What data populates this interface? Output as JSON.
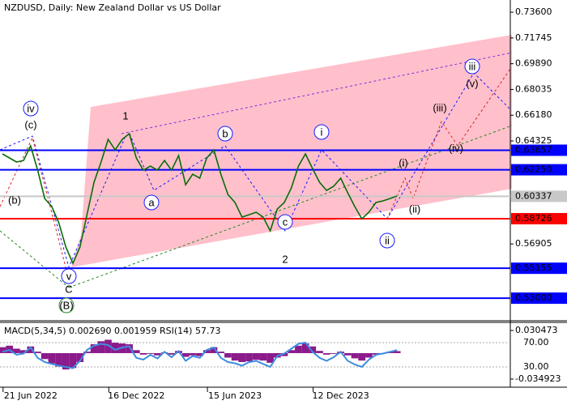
{
  "chart_data": [
    {
      "type": "line",
      "title": "NZDUSD, Daily:  New Zealand Dollar vs US Dollar",
      "values": [
        0.6339,
        0.631,
        0.6281,
        0.6292,
        0.6397,
        0.6222,
        0.6018,
        0.596,
        0.5843,
        0.5668,
        0.5551,
        0.5668,
        0.5901,
        0.6135,
        0.6281,
        0.6444,
        0.6368,
        0.6444,
        0.6485,
        0.631,
        0.6222,
        0.6251,
        0.6222,
        0.6292,
        0.6222,
        0.6327,
        0.6117,
        0.6193,
        0.6164,
        0.631,
        0.6368,
        0.6193,
        0.6047,
        0.5989,
        0.5884,
        0.5901,
        0.5919,
        0.5884,
        0.5785,
        0.5942,
        0.5989,
        0.6094,
        0.6251,
        0.6339,
        0.6234,
        0.6135,
        0.6076,
        0.6106,
        0.6164,
        0.6059,
        0.596,
        0.5872,
        0.5919,
        0.5989,
        0.6001,
        0.6018,
        0.6036
      ],
      "color": "#0a6b0a",
      "ylim": [
        0.5143,
        0.7448
      ],
      "yticks": [
        {
          "value": 0.736,
          "label": "0.73600"
        },
        0.71745,
        {
          "value": 0.6989,
          "label": "0.69890"
        },
        0.68035,
        {
          "value": 0.6618,
          "label": "0.66180"
        },
        0.64325,
        0.56905
      ],
      "levels": [
        {
          "value": 0.63657,
          "color": "#0000ff"
        },
        {
          "value": {
            "value": 0.6225,
            "label": "0.62250"
          },
          "color": "#0000ff"
        },
        {
          "value": 0.60337,
          "color": "#c8c8c8"
        },
        {
          "value": 0.58726,
          "color": "#ff0000"
        },
        {
          "value": 0.55155,
          "color": "#0000ff"
        },
        {
          "value": {
            "value": 0.53,
            "label": "0.53000"
          },
          "color": "#0000ff"
        }
      ],
      "annotations": [
        {
          "text": "iv",
          "color": "#1a1aff",
          "circled": true
        },
        {
          "text": "(c)",
          "color": "#dd2222",
          "circled": false
        },
        {
          "text": "(b)",
          "color": "#dd2222",
          "circled": false
        },
        {
          "text": "v",
          "color": "#1a1aff",
          "circled": true
        },
        {
          "text": "C",
          "color": "#dd2222",
          "circled": false
        },
        {
          "text": "(B)",
          "color": "#228822",
          "circled": true
        },
        {
          "text": "1",
          "color": "#dd2222",
          "circled": false
        },
        {
          "text": "a",
          "color": "#1a1aff",
          "circled": true
        },
        {
          "text": "b",
          "color": "#1a1aff",
          "circled": true
        },
        {
          "text": "c",
          "color": "#1a1aff",
          "circled": true
        },
        {
          "text": "2",
          "color": "#dd2222",
          "circled": false
        },
        {
          "text": "i",
          "color": "#1a1aff",
          "circled": true
        },
        {
          "text": "ii",
          "color": "#1a1aff",
          "circled": true
        },
        {
          "text": "(i)",
          "color": "#dd2222",
          "circled": false
        },
        {
          "text": "(ii)",
          "color": "#dd2222",
          "circled": false
        },
        {
          "text": "(iii)",
          "color": "#dd2222",
          "circled": false
        },
        {
          "text": "(iv)",
          "color": "#dd2222",
          "circled": false
        },
        {
          "text": "(v)",
          "color": "#dd2222",
          "circled": false
        },
        {
          "text": "iii",
          "color": "#1a1aff",
          "circled": true
        }
      ]
    },
    {
      "type": "bar",
      "title": "MACD(5,34,5) 0.002690 0.001959 RSI(14) 57.73",
      "categories": [
        null,
        null,
        null,
        null,
        "21 Jun 2022",
        null,
        null,
        null,
        null,
        null,
        null,
        null,
        null,
        null,
        null,
        null,
        null,
        null,
        null,
        "16 Dec 2022",
        null,
        null,
        null,
        null,
        null,
        null,
        null,
        null,
        null,
        null,
        null,
        null,
        null,
        "15 Jun 2023",
        null,
        null,
        null,
        null,
        null,
        null,
        null,
        null,
        null,
        null,
        null,
        null,
        null,
        null,
        "12 Dec 2023",
        null,
        null,
        null,
        null,
        null,
        null,
        null,
        null
      ],
      "values": [
        0.008,
        0.01,
        0.006,
        0.004,
        0.009,
        0.002,
        -0.008,
        -0.014,
        -0.018,
        -0.022,
        -0.02,
        -0.012,
        0.002,
        0.012,
        0.016,
        0.018,
        0.014,
        0.013,
        0.012,
        0.004,
        -0.002,
        -0.001,
        -0.003,
        0.001,
        -0.002,
        0.003,
        -0.005,
        -0.003,
        -0.004,
        0.004,
        0.008,
        0.002,
        -0.006,
        -0.01,
        -0.012,
        -0.011,
        -0.009,
        -0.01,
        -0.013,
        -0.006,
        -0.004,
        0.004,
        0.01,
        0.013,
        0.009,
        0.003,
        -0.002,
        -0.001,
        0.002,
        -0.003,
        -0.007,
        -0.01,
        -0.006,
        -0.002,
        0,
        0.002,
        0.00269
      ],
      "color": "#8b1a8b",
      "ylim": [
        -0.034923,
        0.030473
      ],
      "yticks": [
        0.030473,
        -0.034923
      ],
      "line": {
        "values": [
          55,
          58,
          50,
          52,
          62,
          45,
          38,
          35,
          32,
          30,
          28,
          40,
          58,
          65,
          68,
          66,
          58,
          62,
          64,
          45,
          42,
          50,
          44,
          55,
          46,
          56,
          40,
          48,
          45,
          58,
          62,
          45,
          38,
          36,
          32,
          38,
          40,
          35,
          30,
          48,
          52,
          60,
          68,
          70,
          55,
          45,
          40,
          46,
          55,
          40,
          34,
          30,
          42,
          50,
          52,
          55,
          57.73
        ],
        "color": "#3d8de0",
        "axis": "y2"
      },
      "y2lim": [
        10,
        90
      ],
      "y2ticks": [
        {
          "value": 70,
          "label": "70.00"
        },
        {
          "value": 30,
          "label": "30.00"
        }
      ]
    }
  ]
}
